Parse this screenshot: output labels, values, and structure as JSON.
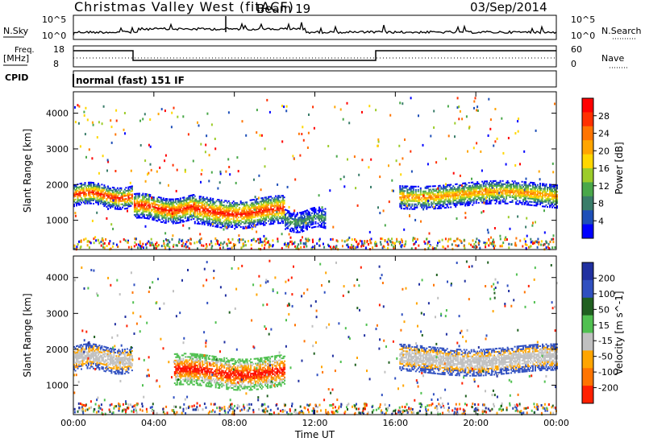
{
  "header": {
    "title": "Christmas Valley West (fitACF)",
    "beam": "Beam 19",
    "date": "03/Sep/2014"
  },
  "top_panels": {
    "nsky_label": "N.Sky",
    "nsky_ticks": [
      "10^5",
      "10^0"
    ],
    "nsky_right_ticks": [
      "10^5",
      "10^0"
    ],
    "nsearch_label": "N.Search",
    "freq_label": "Freq.",
    "freq_unit": "[MHz]",
    "freq_ticks": [
      "18",
      "8"
    ],
    "nave_ticks": [
      "60",
      "0"
    ],
    "nave_label": "Nave",
    "cpid_label": "CPID",
    "cpid_value": "normal (fast) 151 IF"
  },
  "chart_data": [
    {
      "type": "heatmap",
      "panel": "power",
      "ylabel": "Slant Range [km]",
      "yticks": [
        1000,
        2000,
        3000,
        4000
      ],
      "ylim": [
        180,
        4600
      ],
      "xlim": [
        0,
        24
      ],
      "xticks": [
        "00:00",
        "04:00",
        "08:00",
        "12:00",
        "16:00",
        "20:00",
        "00:00"
      ],
      "colorbar": {
        "label": "Power [dB]",
        "ticks": [
          "4",
          "8",
          "12",
          "16",
          "20",
          "24",
          "28"
        ],
        "colors": [
          "#0000ff",
          "#1e4fb8",
          "#3a7d6a",
          "#4aa84a",
          "#9ccc2a",
          "#ffd700",
          "#ffa500",
          "#ff7400",
          "#ff3000",
          "#ff0000"
        ]
      },
      "bands": [
        {
          "x": [
            0,
            2.9
          ],
          "y": [
            1550,
            1800
          ],
          "core": "red"
        },
        {
          "x": [
            3.0,
            6.0
          ],
          "y": [
            1150,
            1500
          ],
          "core": "red"
        },
        {
          "x": [
            6.0,
            10.5
          ],
          "y": [
            1000,
            1450
          ],
          "core": "red"
        },
        {
          "x": [
            10.5,
            12.5
          ],
          "y": [
            900,
            1100
          ],
          "core": "green"
        },
        {
          "x": [
            16.2,
            24
          ],
          "y": [
            1550,
            1850
          ],
          "core": "orange"
        }
      ]
    },
    {
      "type": "heatmap",
      "panel": "velocity",
      "ylabel": "Slant Range [km]",
      "yticks": [
        1000,
        2000,
        3000,
        4000
      ],
      "ylim": [
        180,
        4600
      ],
      "xlim": [
        0,
        24
      ],
      "xticks": [
        "00:00",
        "04:00",
        "08:00",
        "12:00",
        "16:00",
        "20:00",
        "00:00"
      ],
      "xlabel": "Time UT",
      "colorbar": {
        "label": "Velocity [m s^-1]",
        "ticks": [
          "200",
          "100",
          "50",
          "15",
          "-15",
          "-50",
          "-100",
          "-200"
        ],
        "colors": [
          "#2030a0",
          "#3050c0",
          "#206020",
          "#50c050",
          "#c0c0c0",
          "#ffa500",
          "#ff7400",
          "#ff2000"
        ]
      },
      "bands": [
        {
          "x": [
            0,
            2.9
          ],
          "y": [
            1550,
            1900
          ],
          "core": "gray"
        },
        {
          "x": [
            5.0,
            10.5
          ],
          "y": [
            1100,
            1600
          ],
          "core": "red"
        },
        {
          "x": [
            16.2,
            24
          ],
          "y": [
            1500,
            1900
          ],
          "core": "gray"
        }
      ]
    }
  ]
}
